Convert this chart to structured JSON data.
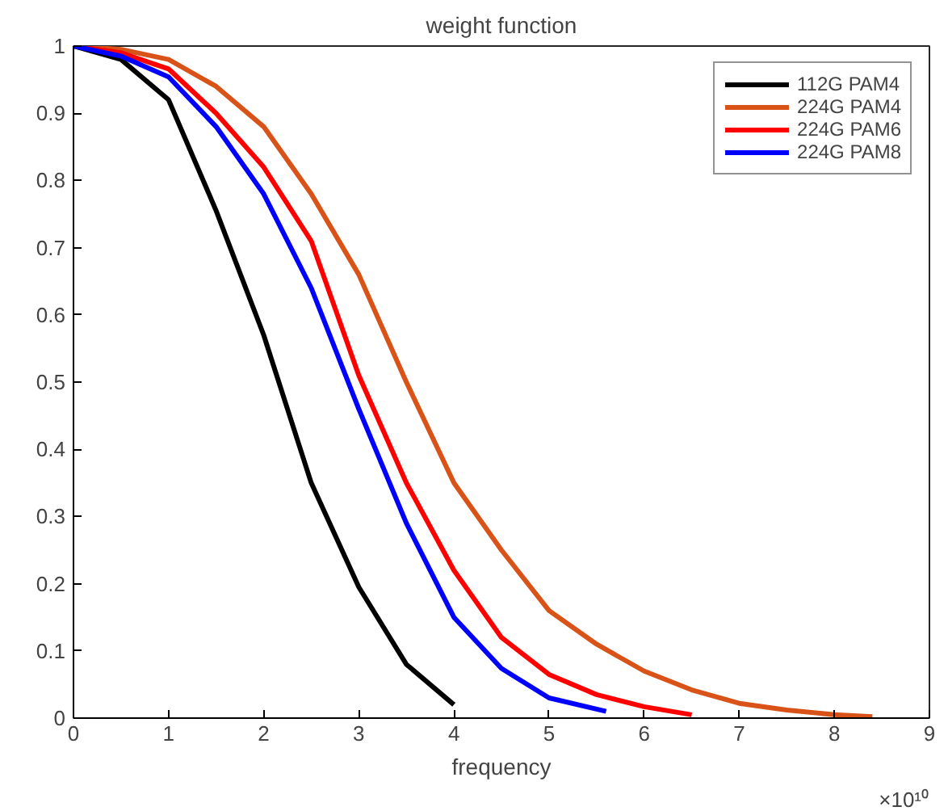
{
  "chart_data": {
    "type": "line",
    "title": "weight function",
    "xlabel": "frequency",
    "annotations": [
      "×10¹⁰"
    ],
    "xlim": [
      0,
      9
    ],
    "xticks": [
      0,
      1,
      2,
      3,
      4,
      5,
      6,
      7,
      8,
      9
    ],
    "ylim": [
      0,
      1
    ],
    "yticks": [
      0,
      0.1,
      0.2,
      0.3,
      0.4,
      0.5,
      0.6,
      0.7,
      0.8,
      0.9,
      1
    ],
    "grid": false,
    "legend": "top right",
    "marker": "none",
    "line_style": "solid",
    "series": [
      {
        "name": "112G PAM4",
        "color": "#000000",
        "x": [
          0,
          0.5,
          1,
          1.5,
          2,
          2.5,
          3,
          3.5,
          4
        ],
        "values": [
          1,
          0.98,
          0.92,
          0.755,
          0.57,
          0.35,
          0.195,
          0.08,
          0.02
        ]
      },
      {
        "name": "224G PAM4",
        "color": "#d95319",
        "x": [
          0,
          0.5,
          1,
          1.5,
          2,
          2.5,
          3,
          3.5,
          4,
          4.5,
          5,
          5.5,
          6,
          6.5,
          7,
          7.5,
          8,
          8.4
        ],
        "values": [
          1,
          0.995,
          0.98,
          0.94,
          0.88,
          0.78,
          0.66,
          0.5,
          0.35,
          0.25,
          0.16,
          0.11,
          0.07,
          0.042,
          0.022,
          0.012,
          0.005,
          0.002
        ]
      },
      {
        "name": "224G PAM6",
        "color": "#ff0000",
        "x": [
          0,
          0.5,
          1,
          1.5,
          2,
          2.5,
          3,
          3.5,
          4,
          4.5,
          5,
          5.5,
          6,
          6.5
        ],
        "values": [
          1,
          0.99,
          0.966,
          0.9,
          0.82,
          0.71,
          0.51,
          0.35,
          0.22,
          0.12,
          0.065,
          0.035,
          0.017,
          0.005
        ]
      },
      {
        "name": "224G PAM8",
        "color": "#0000ff",
        "x": [
          0,
          0.5,
          1,
          1.5,
          2,
          2.5,
          3,
          3.5,
          4,
          4.5,
          5,
          5.6
        ],
        "values": [
          1,
          0.985,
          0.954,
          0.88,
          0.78,
          0.64,
          0.46,
          0.29,
          0.15,
          0.074,
          0.03,
          0.01
        ]
      }
    ]
  }
}
